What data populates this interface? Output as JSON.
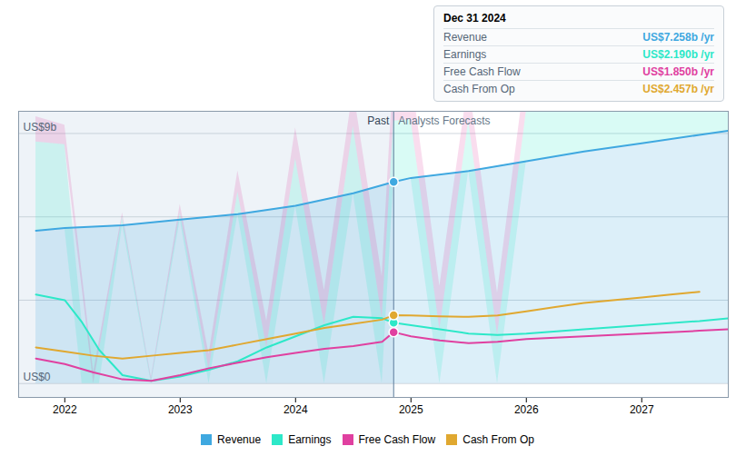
{
  "chart_data": {
    "type": "line",
    "series": [
      {
        "name": "Revenue",
        "color": "#3fa8e0",
        "type": "area",
        "x": [
          2021.75,
          2022.0,
          2022.5,
          2023.0,
          2023.5,
          2024.0,
          2024.5,
          2024.85,
          2025.0,
          2025.5,
          2026.0,
          2026.5,
          2027.0,
          2027.5,
          2027.75
        ],
        "values": [
          5.5,
          5.6,
          5.7,
          5.9,
          6.1,
          6.4,
          6.85,
          7.258,
          7.4,
          7.65,
          8.0,
          8.35,
          8.65,
          8.95,
          9.1
        ]
      },
      {
        "name": "Earnings",
        "color": "#2de8c8",
        "type": "area",
        "x": [
          2021.75,
          2022.0,
          2022.15,
          2022.3,
          2022.5,
          2022.75,
          2023.0,
          2023.25,
          2023.5,
          2023.75,
          2024.0,
          2024.25,
          2024.5,
          2024.75,
          2024.85,
          2025.0,
          2025.25,
          2025.5,
          2025.75,
          2026.0,
          2026.5,
          2027.0,
          2027.5,
          2027.75
        ],
        "values": [
          3.2,
          3.0,
          2.2,
          1.2,
          0.3,
          0.1,
          0.25,
          0.5,
          0.8,
          1.3,
          1.7,
          2.1,
          2.4,
          2.35,
          2.19,
          2.1,
          1.95,
          1.8,
          1.75,
          1.8,
          1.95,
          2.1,
          2.25,
          2.35
        ]
      },
      {
        "name": "Free Cash Flow",
        "color": "#e040a0",
        "type": "area",
        "x": [
          2021.75,
          2022.0,
          2022.25,
          2022.5,
          2022.75,
          2023.0,
          2023.25,
          2023.5,
          2023.75,
          2024.0,
          2024.25,
          2024.5,
          2024.75,
          2024.85,
          2025.0,
          2025.25,
          2025.5,
          2025.75,
          2026.0,
          2026.5,
          2027.0,
          2027.5,
          2027.75
        ],
        "values": [
          0.9,
          0.7,
          0.4,
          0.15,
          0.1,
          0.3,
          0.55,
          0.75,
          0.95,
          1.1,
          1.25,
          1.35,
          1.5,
          1.85,
          1.7,
          1.55,
          1.45,
          1.5,
          1.6,
          1.7,
          1.8,
          1.9,
          1.95
        ]
      },
      {
        "name": "Cash From Op",
        "color": "#e0a830",
        "type": "line",
        "x": [
          2021.75,
          2022.0,
          2022.25,
          2022.5,
          2022.75,
          2023.0,
          2023.25,
          2023.5,
          2023.75,
          2024.0,
          2024.25,
          2024.5,
          2024.75,
          2024.85,
          2025.0,
          2025.25,
          2025.5,
          2025.75,
          2026.0,
          2026.25,
          2026.5,
          2026.75,
          2027.0,
          2027.25,
          2027.5
        ],
        "values": [
          1.3,
          1.15,
          1.0,
          0.9,
          1.0,
          1.1,
          1.2,
          1.4,
          1.6,
          1.8,
          2.0,
          2.15,
          2.3,
          2.457,
          2.45,
          2.42,
          2.4,
          2.45,
          2.6,
          2.75,
          2.9,
          3.0,
          3.1,
          3.2,
          3.3
        ]
      }
    ],
    "xlim": [
      2021.6,
      2027.75
    ],
    "xticks": [
      2022,
      2023,
      2024,
      2025,
      2026,
      2027
    ],
    "ylim": [
      -0.5,
      9.8
    ],
    "yticks": [
      0,
      3,
      6,
      9
    ],
    "grid": true,
    "tick_labels": "x",
    "legend": "bottom",
    "annotations": [
      {
        "text": "US$9b",
        "y": 9
      },
      {
        "text": "US$0",
        "y": 0
      }
    ],
    "divider_x": 2024.85,
    "past_label": "Past",
    "forecast_label": "Analysts Forecasts",
    "tooltip": {
      "title": "Dec 31 2024",
      "rows": [
        {
          "label": "Revenue",
          "value": "US$7.258b /yr",
          "color": "#3fa8e0"
        },
        {
          "label": "Earnings",
          "value": "US$2.190b /yr",
          "color": "#2de8c8"
        },
        {
          "label": "Free Cash Flow",
          "value": "US$1.850b /yr",
          "color": "#e040a0"
        },
        {
          "label": "Cash From Op",
          "value": "US$2.457b /yr",
          "color": "#e0a830"
        }
      ]
    }
  }
}
